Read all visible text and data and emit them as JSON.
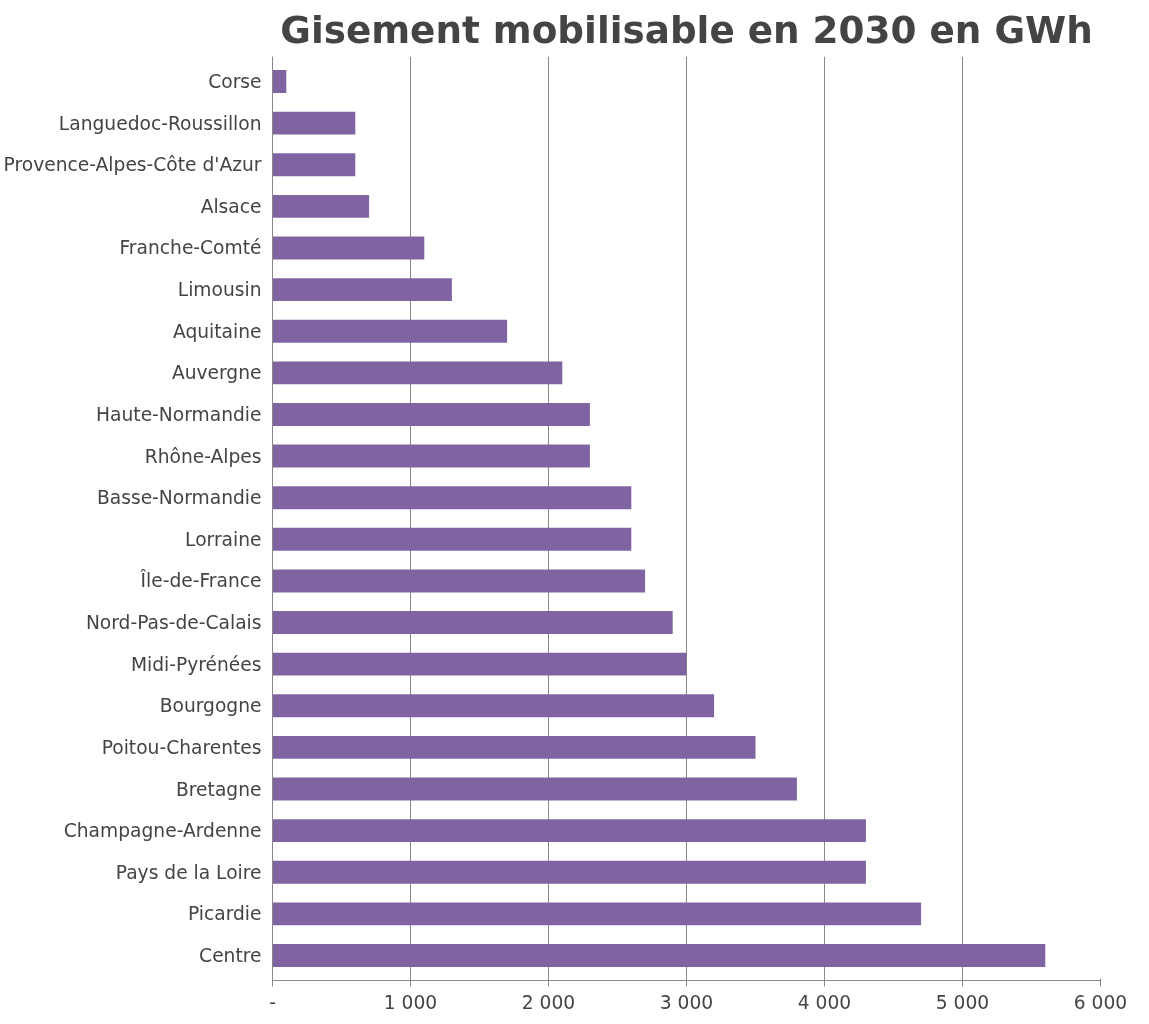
{
  "chart_data": {
    "type": "bar",
    "orientation": "horizontal",
    "title": "Gisement mobilisable en 2030 en GWh",
    "categories": [
      "Corse",
      "Languedoc-Roussillon",
      "Provence-Alpes-Côte d'Azur",
      "Alsace",
      "Franche-Comté",
      "Limousin",
      "Aquitaine",
      "Auvergne",
      "Haute-Normandie",
      "Rhône-Alpes",
      "Basse-Normandie",
      "Lorraine",
      "Île-de-France",
      "Nord-Pas-de-Calais",
      "Midi-Pyrénées",
      "Bourgogne",
      "Poitou-Charentes",
      "Bretagne",
      "Champagne-Ardenne",
      "Pays de la Loire",
      "Picardie",
      "Centre"
    ],
    "values": [
      100,
      600,
      600,
      700,
      1100,
      1300,
      1700,
      2100,
      2300,
      2300,
      2600,
      2600,
      2700,
      2900,
      3000,
      3200,
      3500,
      3800,
      4300,
      4300,
      4700,
      5600
    ],
    "color": "#8064a2",
    "xlim": [
      0,
      6000
    ],
    "xticks": [
      {
        "value": 0,
        "label": "-"
      },
      {
        "value": 1000,
        "label": "1 000"
      },
      {
        "value": 2000,
        "label": "2 000"
      },
      {
        "value": 3000,
        "label": "3 000"
      },
      {
        "value": 4000,
        "label": "4 000"
      },
      {
        "value": 5000,
        "label": "5 000"
      },
      {
        "value": 6000,
        "label": "6 000"
      }
    ],
    "grid": "x"
  }
}
